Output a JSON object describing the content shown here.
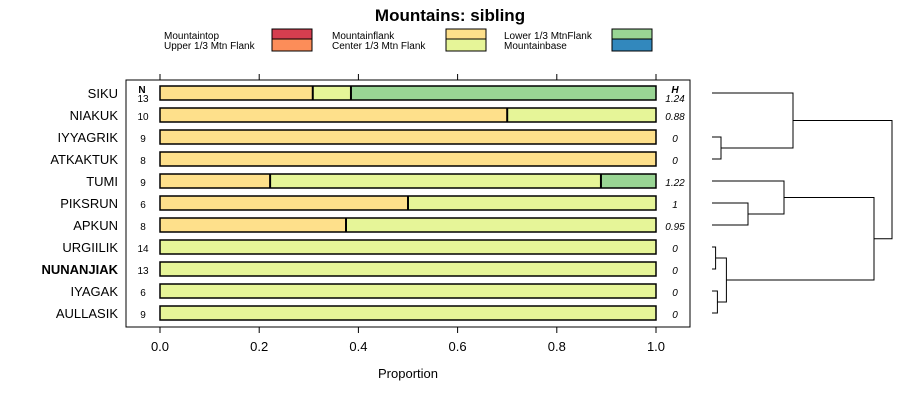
{
  "chart_data": {
    "type": "bar",
    "orientation": "horizontal",
    "stacked": true,
    "title": "Mountains: sibling",
    "xlabel": "Proportion",
    "xlim": [
      0,
      1
    ],
    "xticks": [
      "0.0",
      "0.2",
      "0.4",
      "0.6",
      "0.8",
      "1.0"
    ],
    "xtick_values": [
      0,
      0.2,
      0.4,
      0.6,
      0.8,
      1.0
    ],
    "n_header": "N",
    "h_header": "H",
    "legend": [
      {
        "name": "Mountaintop",
        "color": "#d53e4f"
      },
      {
        "name": "Upper 1/3 Mtn Flank",
        "color": "#fc8d59"
      },
      {
        "name": "Mountainflank",
        "color": "#fee08b"
      },
      {
        "name": "Center 1/3 Mtn Flank",
        "color": "#e6f598"
      },
      {
        "name": "Lower 1/3 MtnFlank",
        "color": "#99d594"
      },
      {
        "name": "Mountainbase",
        "color": "#3288bd"
      }
    ],
    "categories": [
      "SIKU",
      "NIAKUK",
      "IYYAGRIK",
      "ATKAKTUK",
      "TUMI",
      "PIKSRUN",
      "APKUN",
      "URGIILIK",
      "NUNANJIAK",
      "IYAGAK",
      "AULLASIK"
    ],
    "highlighted": "NUNANJIAK",
    "n": [
      "13",
      "10",
      "9",
      "8",
      "9",
      "6",
      "8",
      "14",
      "13",
      "6",
      "9"
    ],
    "h": [
      "1.24",
      "0.88",
      "0",
      "0",
      "1.22",
      "1",
      "0.95",
      "0",
      "0",
      "0",
      "0"
    ],
    "series": [
      {
        "name": "Mountaintop",
        "values": [
          0,
          0,
          0,
          0,
          0,
          0,
          0,
          0,
          0,
          0,
          0
        ]
      },
      {
        "name": "Upper 1/3 Mtn Flank",
        "values": [
          0,
          0,
          0,
          0,
          0,
          0,
          0,
          0,
          0,
          0,
          0
        ]
      },
      {
        "name": "Mountainflank",
        "values": [
          0.308,
          0.7,
          1,
          1,
          0.222,
          0.5,
          0.375,
          0,
          0,
          0,
          0
        ]
      },
      {
        "name": "Center 1/3 Mtn Flank",
        "values": [
          0.077,
          0.3,
          0,
          0,
          0.667,
          0.5,
          0.625,
          1,
          1,
          1,
          1
        ]
      },
      {
        "name": "Lower 1/3 MtnFlank",
        "values": [
          0.615,
          0,
          0,
          0,
          0.111,
          0,
          0,
          0,
          0,
          0,
          0
        ]
      },
      {
        "name": "Mountainbase",
        "values": [
          0,
          0,
          0,
          0,
          0,
          0,
          0,
          0,
          0,
          0,
          0
        ]
      }
    ],
    "dendrogram_merges": [
      [
        -3,
        -4
      ],
      [
        -1,
        1
      ],
      [
        -6,
        -7
      ],
      [
        -5,
        3
      ],
      [
        -8,
        -9
      ],
      [
        -10,
        -11
      ],
      [
        5,
        6
      ],
      [
        4,
        7
      ],
      [
        2,
        8
      ]
    ],
    "dendrogram_heights": [
      0.05,
      0.45,
      0.2,
      0.4,
      0.02,
      0.03,
      0.08,
      0.9,
      1.0
    ]
  }
}
